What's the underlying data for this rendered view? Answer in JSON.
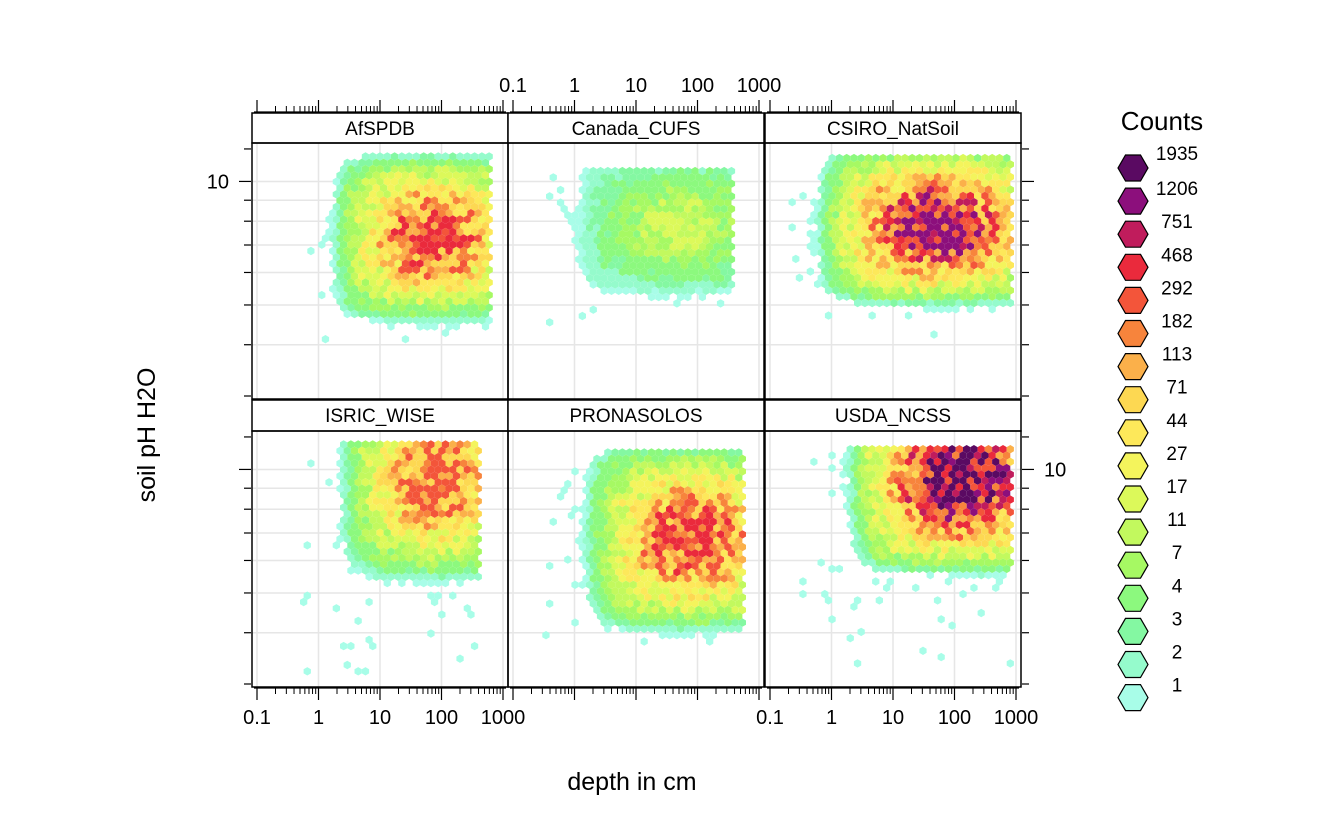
{
  "chart_data": {
    "type": "heatmap",
    "subtype": "hexbin-lattice",
    "xlabel": "depth in cm",
    "ylabel": "soil pH H2O",
    "x_scale": "log10",
    "x_range": [
      0.1,
      1000
    ],
    "x_ticks": [
      0.1,
      1,
      10,
      100,
      1000
    ],
    "x_tick_labels": [
      "0.1",
      "1",
      "10",
      "100",
      "1000"
    ],
    "y_scale": "log10",
    "y_range": [
      3.0,
      12.2
    ],
    "y_ticks": [
      10
    ],
    "y_tick_labels": [
      "10"
    ],
    "grid": true,
    "layout": {
      "columns": 3,
      "rows": 2
    },
    "panels": [
      {
        "name": "AfSPDB",
        "x_range": [
          0.5,
          600
        ],
        "y_range": [
          4.0,
          11.5
        ],
        "peak": {
          "x": 70,
          "y": 7.3,
          "count": 468
        },
        "max_count": 468
      },
      {
        "name": "Canada_CUFS",
        "x_range": [
          0.3,
          400
        ],
        "y_range": [
          4.5,
          10.6
        ],
        "peak": {
          "x": 50,
          "y": 7.8,
          "count": 17
        },
        "max_count": 17
      },
      {
        "name": "CSIRO_NatSoil",
        "x_range": [
          0.2,
          900
        ],
        "y_range": [
          4.2,
          11.4
        ],
        "peak": {
          "x": 50,
          "y": 7.8,
          "count": 1206
        },
        "max_count": 1206
      },
      {
        "name": "ISRIC_WISE",
        "x_range": [
          0.5,
          400
        ],
        "y_range": [
          3.2,
          11.5
        ],
        "peak": {
          "x": 80,
          "y": 9.5,
          "count": 292
        },
        "max_count": 292
      },
      {
        "name": "PRONASOLOS",
        "x_range": [
          0.3,
          600
        ],
        "y_range": [
          3.4,
          11.0
        ],
        "peak": {
          "x": 80,
          "y": 6.8,
          "count": 468
        },
        "max_count": 468
      },
      {
        "name": "USDA_NCSS",
        "x_range": [
          0.3,
          900
        ],
        "y_range": [
          3.3,
          11.2
        ],
        "peak": {
          "x": 130,
          "y": 9.6,
          "count": 1935
        },
        "max_count": 1935
      }
    ],
    "legend": {
      "title": "Counts",
      "placement": "right",
      "levels": [
        {
          "count": "1935",
          "color": "#5a0a62"
        },
        {
          "count": "1206",
          "color": "#8c0f7c"
        },
        {
          "count": "751",
          "color": "#c01c5c"
        },
        {
          "count": "468",
          "color": "#ea2a3c"
        },
        {
          "count": "292",
          "color": "#f3553a"
        },
        {
          "count": "182",
          "color": "#f7843c"
        },
        {
          "count": "113",
          "color": "#fbb04a"
        },
        {
          "count": "71",
          "color": "#fdd852"
        },
        {
          "count": "44",
          "color": "#fde85a"
        },
        {
          "count": "27",
          "color": "#f4f45c"
        },
        {
          "count": "17",
          "color": "#dcf95a"
        },
        {
          "count": "11",
          "color": "#c2f95e"
        },
        {
          "count": "7",
          "color": "#a6f963"
        },
        {
          "count": "4",
          "color": "#8cf97e"
        },
        {
          "count": "3",
          "color": "#84f8a2"
        },
        {
          "count": "2",
          "color": "#95fbcc"
        },
        {
          "count": "1",
          "color": "#a8fde8"
        }
      ]
    }
  }
}
